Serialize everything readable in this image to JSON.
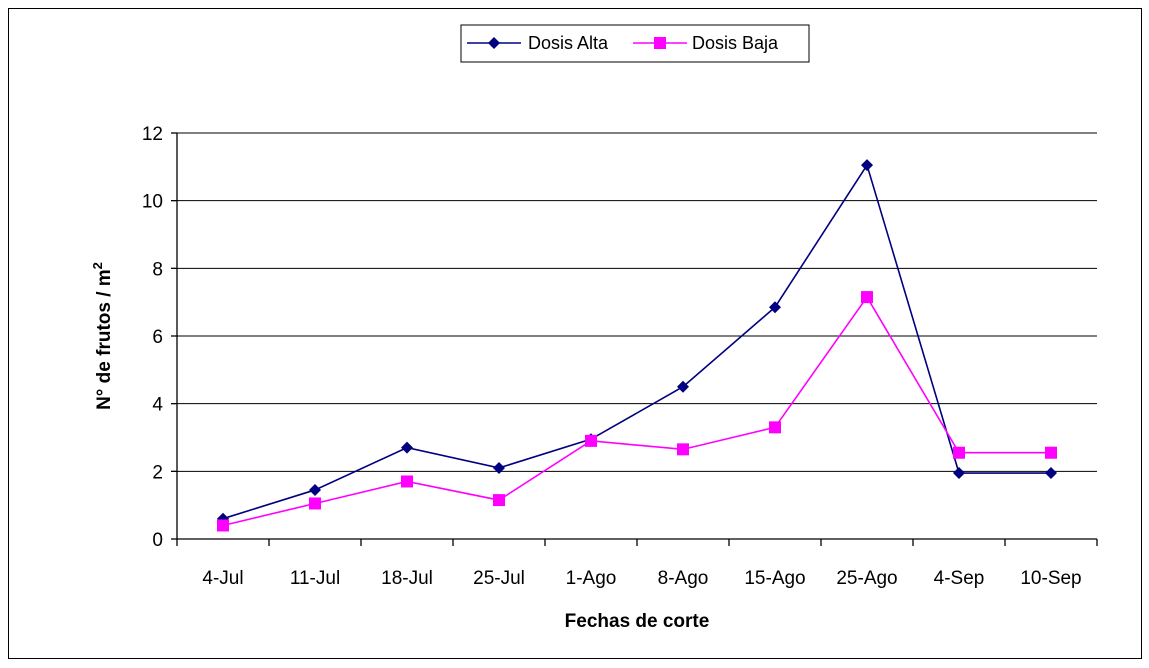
{
  "chart_data": {
    "type": "line",
    "categories": [
      "4-Jul",
      "11-Jul",
      "18-Jul",
      "25-Jul",
      "1-Ago",
      "8-Ago",
      "15-Ago",
      "25-Ago",
      "4-Sep",
      "10-Sep"
    ],
    "series": [
      {
        "name": "Dosis Alta",
        "color": "#000080",
        "marker": "diamond",
        "values": [
          0.6,
          1.45,
          2.7,
          2.1,
          2.95,
          4.5,
          6.85,
          11.05,
          1.95,
          1.95
        ]
      },
      {
        "name": "Dosis Baja",
        "color": "#ff00ff",
        "marker": "square",
        "values": [
          0.4,
          1.05,
          1.7,
          1.15,
          2.9,
          2.65,
          3.3,
          7.15,
          2.55,
          2.55
        ]
      }
    ],
    "xlabel": "Fechas de corte",
    "ylabel": "N° de frutos / m",
    "ylabel_superscript": "2",
    "ylim": [
      0,
      12
    ],
    "yticks": [
      "0",
      "2",
      "4",
      "6",
      "8",
      "10",
      "12"
    ],
    "grid": true,
    "legend_position": "top"
  }
}
